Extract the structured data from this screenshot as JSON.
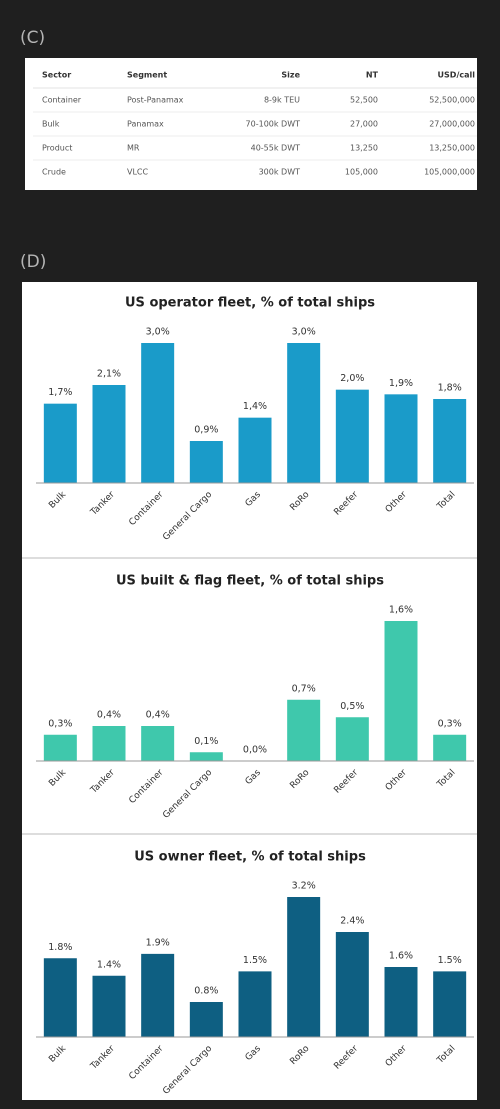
{
  "section_c": {
    "label": "(C)",
    "table": {
      "header": [
        "Sector",
        "Segment",
        "Size",
        "NT",
        "USD/call"
      ],
      "rows": [
        [
          "Container",
          "Post-Panamax",
          "8-9k TEU",
          "52,500",
          "52,500,000"
        ],
        [
          "Bulk",
          "Panamax",
          "70-100k DWT",
          "27,000",
          "27,000,000"
        ],
        [
          "Product",
          "MR",
          "40-55k DWT",
          "13,250",
          "13,250,000"
        ],
        [
          "Crude",
          "VLCC",
          "300k DWT",
          "105,000",
          "105,000,000"
        ]
      ]
    }
  },
  "section_d": {
    "label": "(D)"
  },
  "chart_data": [
    {
      "type": "bar",
      "title": "US operator fleet, % of total ships",
      "categories": [
        "Bulk",
        "Tanker",
        "Container",
        "General Cargo",
        "Gas",
        "RoRo",
        "Reefer",
        "Other",
        "Total"
      ],
      "values": [
        1.7,
        2.1,
        3.0,
        0.9,
        1.4,
        3.0,
        2.0,
        1.9,
        1.8
      ],
      "value_labels": [
        "1,7%",
        "2,1%",
        "3,0%",
        "0,9%",
        "1,4%",
        "3,0%",
        "2,0%",
        "1,9%",
        "1,8%"
      ],
      "color": "#1a9bc9"
    },
    {
      "type": "bar",
      "title": "US built & flag fleet, % of total ships",
      "categories": [
        "Bulk",
        "Tanker",
        "Container",
        "General Cargo",
        "Gas",
        "RoRo",
        "Reefer",
        "Other",
        "Total"
      ],
      "values": [
        0.3,
        0.4,
        0.4,
        0.1,
        0.0,
        0.7,
        0.5,
        1.6,
        0.3
      ],
      "value_labels": [
        "0,3%",
        "0,4%",
        "0,4%",
        "0,1%",
        "0,0%",
        "0,7%",
        "0,5%",
        "1,6%",
        "0,3%"
      ],
      "color": "#3fc8ac"
    },
    {
      "type": "bar",
      "title": "US owner fleet, % of total ships",
      "categories": [
        "Bulk",
        "Tanker",
        "Container",
        "General Cargo",
        "Gas",
        "RoRo",
        "Reefer",
        "Other",
        "Total"
      ],
      "values": [
        1.8,
        1.4,
        1.9,
        0.8,
        1.5,
        3.2,
        2.4,
        1.6,
        1.5
      ],
      "value_labels": [
        "1.8%",
        "1.4%",
        "1.9%",
        "0.8%",
        "1.5%",
        "3.2%",
        "2.4%",
        "1.6%",
        "1.5%"
      ],
      "color": "#0e5f82"
    }
  ]
}
